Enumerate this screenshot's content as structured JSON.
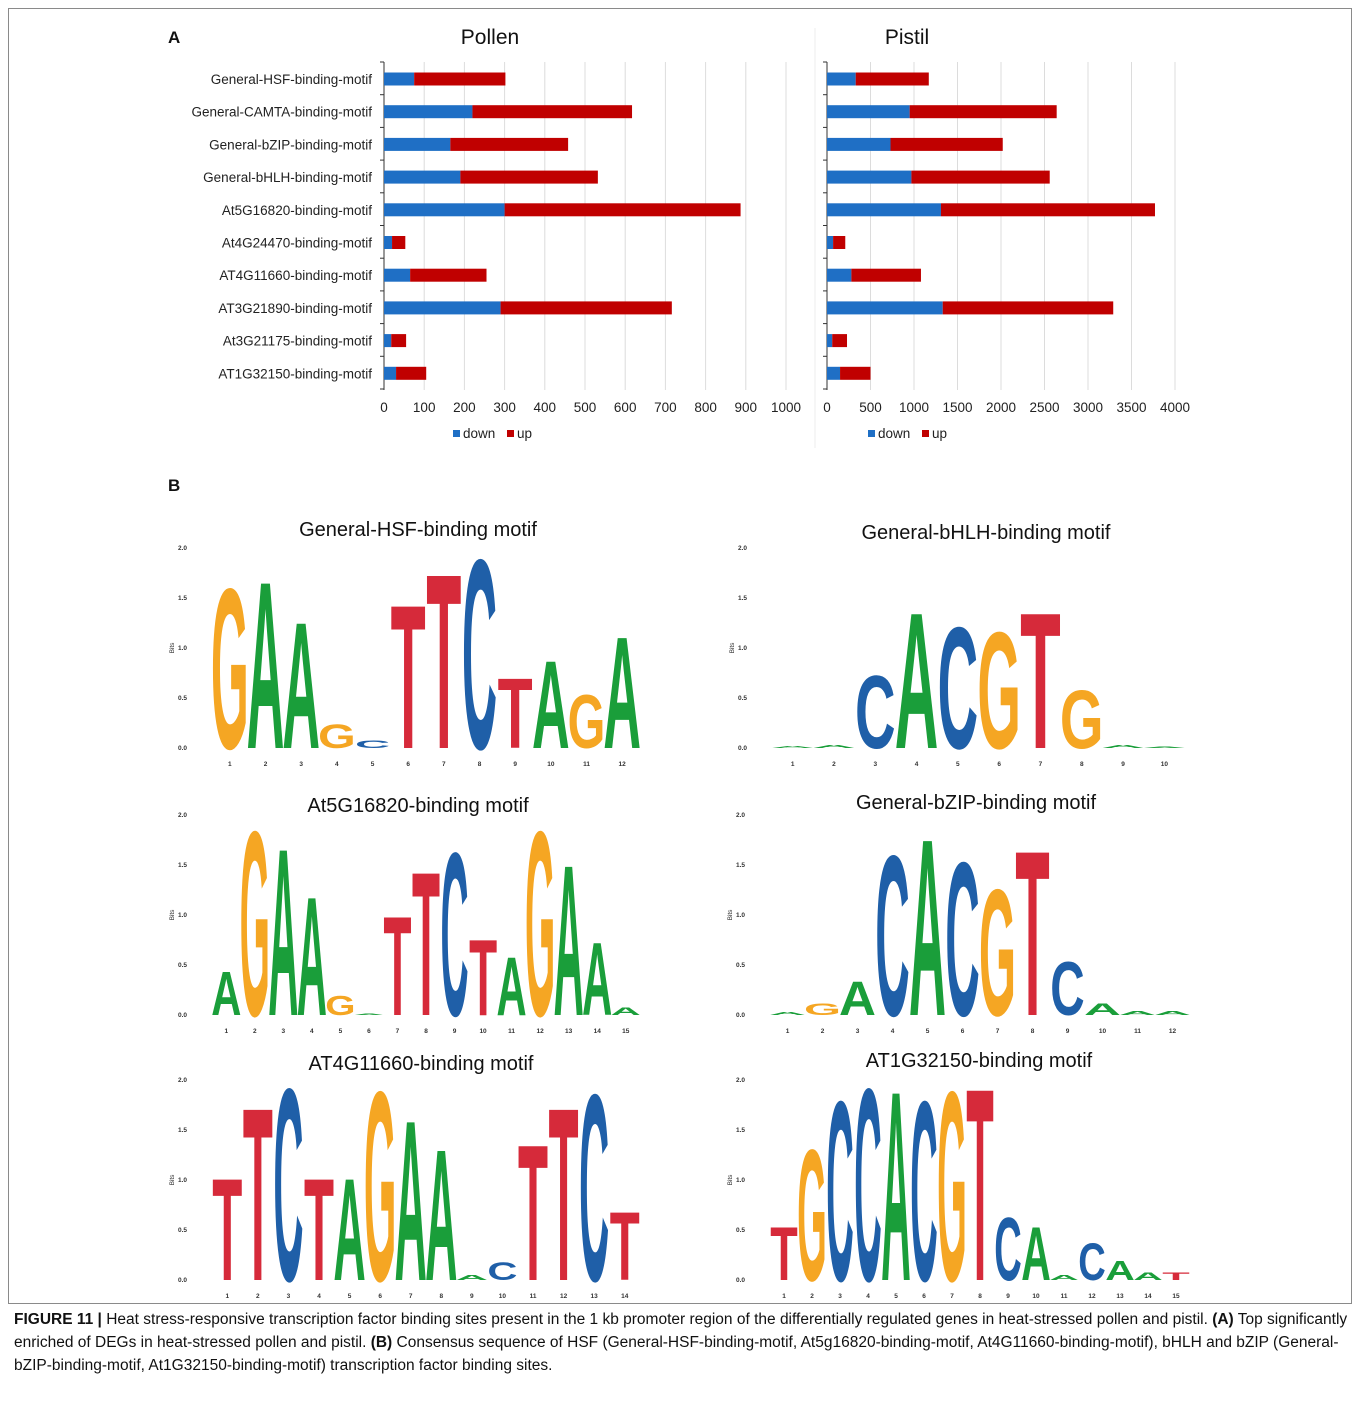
{
  "panel_a_label": "A",
  "panel_b_label": "B",
  "legend": {
    "down": "down",
    "up": "up",
    "down_color": "#1f6fc5",
    "up_color": "#c00000"
  },
  "chart_data": [
    {
      "type": "bar",
      "stacked": true,
      "orientation": "horizontal",
      "title": "Pollen",
      "categories": [
        "General-HSF-binding-motif",
        "General-CAMTA-binding-motif",
        "General-bZIP-binding-motif",
        "General-bHLH-binding-motif",
        "At5G16820-binding-motif",
        "At4G24470-binding-motif",
        "AT4G11660-binding-motif",
        "AT3G21890-binding-motif",
        "At3G21175-binding-motif",
        "AT1G32150-binding-motif"
      ],
      "series": [
        {
          "name": "down",
          "values": [
            75,
            220,
            165,
            190,
            300,
            20,
            65,
            290,
            18,
            30
          ]
        },
        {
          "name": "up",
          "values": [
            227,
            397,
            293,
            342,
            587,
            33,
            190,
            426,
            37,
            75
          ]
        }
      ],
      "xlim": [
        0,
        1000
      ],
      "xticks": [
        0,
        100,
        200,
        300,
        400,
        500,
        600,
        700,
        800,
        900,
        1000
      ],
      "grid": true,
      "legend_position": "bottom"
    },
    {
      "type": "bar",
      "stacked": true,
      "orientation": "horizontal",
      "title": "Pistil",
      "categories": [
        "General-HSF-binding-motif",
        "General-CAMTA-binding-motif",
        "General-bZIP-binding-motif",
        "General-bHLH-binding-motif",
        "At5G16820-binding-motif",
        "At4G24470-binding-motif",
        "AT4G11660-binding-motif",
        "AT3G21890-binding-motif",
        "At3G21175-binding-motif",
        "AT1G32150-binding-motif"
      ],
      "series": [
        {
          "name": "down",
          "values": [
            330,
            950,
            730,
            970,
            1310,
            70,
            280,
            1330,
            60,
            150
          ]
        },
        {
          "name": "up",
          "values": [
            840,
            1690,
            1290,
            1590,
            2460,
            140,
            800,
            1960,
            170,
            350
          ]
        }
      ],
      "xlim": [
        0,
        4000
      ],
      "xticks": [
        0,
        500,
        1000,
        1500,
        2000,
        2500,
        3000,
        3500,
        4000
      ],
      "grid": true,
      "legend_position": "bottom"
    }
  ],
  "nucleotide_colors": {
    "A": "#1a9e3a",
    "C": "#1f5fa8",
    "G": "#f5a623",
    "T": "#d62a3a"
  },
  "logo_y_label": "Bits",
  "logo_y_ticks": [
    "2.0",
    "1.5",
    "1.0",
    "0.5",
    "0.0"
  ],
  "motifs": [
    {
      "title": "General-HSF-binding motif",
      "positions": [
        [
          "G",
          1.65
        ],
        [
          "A",
          1.72
        ],
        [
          "A",
          1.3
        ],
        [
          "G",
          0.25
        ],
        [
          "C",
          0.08
        ],
        [
          "T",
          1.48
        ],
        [
          "T",
          1.8
        ],
        [
          "C",
          1.95
        ],
        [
          "T",
          0.72
        ],
        [
          "A",
          0.9
        ],
        [
          "G",
          0.55
        ],
        [
          "A",
          1.15
        ]
      ],
      "xticks": [
        "1",
        "2",
        "3",
        "4",
        "5",
        "6",
        "7",
        "8",
        "9",
        "10",
        "11",
        "12"
      ]
    },
    {
      "title": "General-bHLH-binding motif",
      "positions": [
        [
          "A",
          0.02
        ],
        [
          "A",
          0.03
        ],
        [
          "C",
          0.75
        ],
        [
          "A",
          1.4
        ],
        [
          "C",
          1.25
        ],
        [
          "G",
          1.2
        ],
        [
          "T",
          1.4
        ],
        [
          "G",
          0.6
        ],
        [
          "A",
          0.03
        ],
        [
          "A",
          0.01
        ]
      ],
      "xticks": [
        "1",
        "2",
        "3",
        "4",
        "5",
        "6",
        "7",
        "8",
        "9",
        "10"
      ]
    },
    {
      "title": "At5G16820-binding motif",
      "positions": [
        [
          "A",
          0.45
        ],
        [
          "G",
          1.9
        ],
        [
          "A",
          1.72
        ],
        [
          "A",
          1.22
        ],
        [
          "G",
          0.2
        ],
        [
          "A",
          0.01
        ],
        [
          "T",
          1.02
        ],
        [
          "T",
          1.48
        ],
        [
          "C",
          1.68
        ],
        [
          "T",
          0.78
        ],
        [
          "A",
          0.6
        ],
        [
          "G",
          1.9
        ],
        [
          "A",
          1.55
        ],
        [
          "A",
          0.75
        ],
        [
          "A",
          0.08
        ]
      ],
      "xticks": [
        "1",
        "2",
        "3",
        "4",
        "5",
        "6",
        "7",
        "8",
        "9",
        "10",
        "11",
        "12",
        "13",
        "14",
        "15"
      ]
    },
    {
      "title": "General-bZIP-binding motif",
      "positions": [
        [
          "A",
          0.03
        ],
        [
          "G",
          0.12
        ],
        [
          "A",
          0.35
        ],
        [
          "C",
          1.65
        ],
        [
          "A",
          1.82
        ],
        [
          "C",
          1.58
        ],
        [
          "G",
          1.3
        ],
        [
          "T",
          1.7
        ],
        [
          "C",
          0.55
        ],
        [
          "A",
          0.12
        ],
        [
          "A",
          0.04
        ],
        [
          "A",
          0.04
        ]
      ],
      "xticks": [
        "1",
        "2",
        "3",
        "4",
        "5",
        "6",
        "7",
        "8",
        "9",
        "10",
        "11",
        "12"
      ]
    },
    {
      "title": "AT4G11660-binding motif",
      "positions": [
        [
          "T",
          1.05
        ],
        [
          "T",
          1.78
        ],
        [
          "C",
          1.98
        ],
        [
          "T",
          1.05
        ],
        [
          "A",
          1.05
        ],
        [
          "G",
          1.95
        ],
        [
          "A",
          1.65
        ],
        [
          "A",
          1.35
        ],
        [
          "A",
          0.05
        ],
        [
          "C",
          0.18
        ],
        [
          "T",
          1.4
        ],
        [
          "T",
          1.78
        ],
        [
          "C",
          1.92
        ],
        [
          "T",
          0.7
        ]
      ],
      "xticks": [
        "1",
        "2",
        "3",
        "4",
        "5",
        "6",
        "7",
        "8",
        "9",
        "10",
        "11",
        "12",
        "13",
        "14"
      ]
    },
    {
      "title": "AT1G32150-binding motif",
      "positions": [
        [
          "T",
          0.55
        ],
        [
          "G",
          1.35
        ],
        [
          "C",
          1.85
        ],
        [
          "C",
          1.98
        ],
        [
          "A",
          1.95
        ],
        [
          "C",
          1.85
        ],
        [
          "G",
          1.95
        ],
        [
          "T",
          1.98
        ],
        [
          "C",
          0.65
        ],
        [
          "A",
          0.55
        ],
        [
          "A",
          0.05
        ],
        [
          "C",
          0.38
        ],
        [
          "A",
          0.2
        ],
        [
          "A",
          0.08
        ],
        [
          "T",
          0.08
        ]
      ],
      "xticks": [
        "1",
        "2",
        "3",
        "4",
        "5",
        "6",
        "7",
        "8",
        "9",
        "10",
        "11",
        "12",
        "13",
        "14",
        "15"
      ]
    }
  ],
  "caption": {
    "fig_label": "FIGURE 11 |",
    "part1": " Heat stress-responsive transcription factor binding sites present in the 1 kb promoter region of the differentially regulated genes in heat-stressed pollen and pistil. ",
    "a_label": "(A)",
    "part2": " Top significantly enriched of DEGs in heat-stressed pollen and pistil. ",
    "b_label": "(B)",
    "part3": " Consensus sequence of HSF (General-HSF-binding-motif, At5g16820-binding-motif, At4G11660-binding-motif), bHLH and bZIP (General-bZIP-binding-motif, At1G32150-binding-motif) transcription factor binding sites."
  }
}
